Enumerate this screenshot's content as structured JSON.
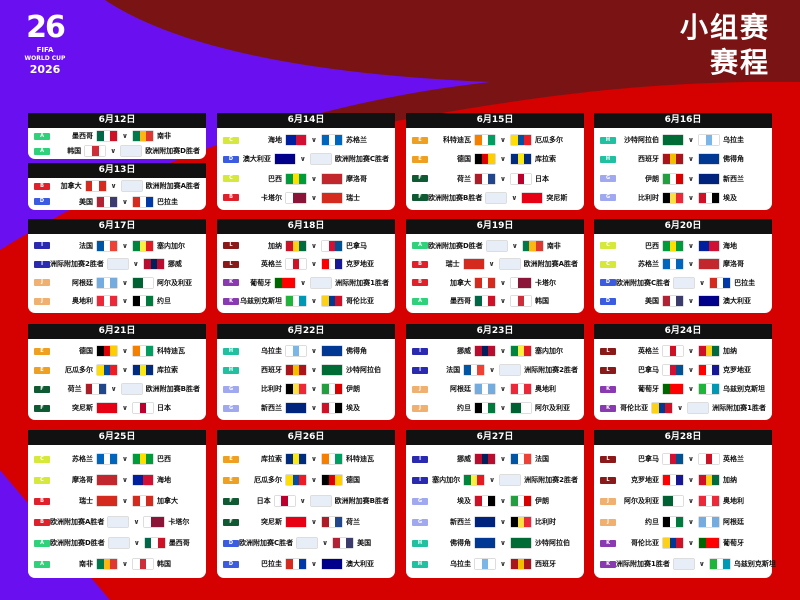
{
  "header": {
    "title_line1": "小组赛",
    "title_line2": "赛程"
  },
  "logo": {
    "number": "26",
    "fifa": "FIFA",
    "world_cup": "WORLD CUP",
    "year": "2026"
  },
  "colors": {
    "purple": "#6a10f0",
    "dark_red": "#7a1414",
    "red": "#d50000",
    "card_header": "#111111"
  },
  "group_colors": {
    "A": "#2fd27a",
    "B": "#e0202a",
    "C": "#d6e83a",
    "D": "#3b5be0",
    "E": "#f0a020",
    "F": "#0f5a32",
    "G": "#a0a8f0",
    "H": "#20c0a0",
    "I": "#2a2ab0",
    "J": "#f0b070",
    "K": "#8a3ab0",
    "L": "#8a1a1a"
  },
  "flags": {
    "墨西哥": [
      "#006847",
      "#ffffff",
      "#ce1126"
    ],
    "南非": [
      "#007a4d",
      "#ffb612",
      "#de3831"
    ],
    "韩国": [
      "#ffffff",
      "#cd2e3a",
      "#ffffff"
    ],
    "加拿大": [
      "#d52b1e",
      "#ffffff",
      "#d52b1e"
    ],
    "美国": [
      "#b22234",
      "#ffffff",
      "#3c3b6e"
    ],
    "巴拉圭": [
      "#d52b1e",
      "#ffffff",
      "#0038a8"
    ],
    "海地": [
      "#00209f",
      "#d21034"
    ],
    "苏格兰": [
      "#0065bd",
      "#ffffff",
      "#0065bd"
    ],
    "澳大利亚": [
      "#00008b",
      "#00008b"
    ],
    "巴西": [
      "#009c3b",
      "#ffdf00",
      "#009c3b"
    ],
    "摩洛哥": [
      "#c1272d",
      "#c1272d"
    ],
    "卡塔尔": [
      "#ffffff",
      "#8a1538",
      "#8a1538"
    ],
    "瑞士": [
      "#d52b1e",
      "#d52b1e"
    ],
    "科特迪瓦": [
      "#f77f00",
      "#ffffff",
      "#009e60"
    ],
    "厄瓜多尔": [
      "#ffdd00",
      "#034ea2",
      "#ed1c24"
    ],
    "德国": [
      "#000000",
      "#dd0000",
      "#ffce00"
    ],
    "库拉索": [
      "#002b7f",
      "#f9e814",
      "#002b7f"
    ],
    "荷兰": [
      "#ae1c28",
      "#ffffff",
      "#21468b"
    ],
    "日本": [
      "#ffffff",
      "#bc002d",
      "#ffffff"
    ],
    "突尼斯": [
      "#e70013",
      "#e70013"
    ],
    "沙特阿拉伯": [
      "#006c35",
      "#006c35"
    ],
    "乌拉圭": [
      "#ffffff",
      "#7bb6e6",
      "#ffffff"
    ],
    "西班牙": [
      "#aa151b",
      "#f1bf00",
      "#aa151b"
    ],
    "佛得角": [
      "#003893",
      "#003893"
    ],
    "伊朗": [
      "#239f40",
      "#ffffff",
      "#da0000"
    ],
    "新西兰": [
      "#00247d",
      "#00247d"
    ],
    "比利时": [
      "#000000",
      "#fae042",
      "#ed2939"
    ],
    "埃及": [
      "#ce1126",
      "#ffffff",
      "#000000"
    ],
    "法国": [
      "#0055a4",
      "#ffffff",
      "#ef4135"
    ],
    "塞内加尔": [
      "#00853f",
      "#fdef42",
      "#e31b23"
    ],
    "挪威": [
      "#ba0c2f",
      "#00205b",
      "#ba0c2f"
    ],
    "阿根廷": [
      "#74acdf",
      "#ffffff",
      "#74acdf"
    ],
    "阿尔及利亚": [
      "#006233",
      "#ffffff"
    ],
    "奥地利": [
      "#ed2939",
      "#ffffff",
      "#ed2939"
    ],
    "约旦": [
      "#000000",
      "#ffffff",
      "#007a3d"
    ],
    "加纳": [
      "#ce1126",
      "#fcd116",
      "#006b3f"
    ],
    "巴拿马": [
      "#ffffff",
      "#d21034",
      "#005293"
    ],
    "英格兰": [
      "#ffffff",
      "#ce1124",
      "#ffffff"
    ],
    "克罗地亚": [
      "#ff0000",
      "#ffffff",
      "#171796"
    ],
    "葡萄牙": [
      "#006600",
      "#ff0000",
      "#ff0000"
    ],
    "乌兹别克斯坦": [
      "#1eb53a",
      "#ffffff",
      "#0099b5"
    ],
    "哥伦比亚": [
      "#fcd116",
      "#003893",
      "#ce1126"
    ],
    "_playoff": [
      "#e8eef8",
      "#e8eef8"
    ]
  },
  "days": [
    {
      "date": "6月12日",
      "matches": [
        [
          "A",
          "墨西哥",
          "南非"
        ],
        [
          "A",
          "韩国",
          "欧洲附加赛D胜者"
        ]
      ]
    },
    {
      "date": "6月13日",
      "matches": [
        [
          "B",
          "加拿大",
          "欧洲附加赛A胜者"
        ],
        [
          "D",
          "美国",
          "巴拉圭"
        ]
      ]
    },
    {
      "date": "6月14日",
      "matches": [
        [
          "C",
          "海地",
          "苏格兰"
        ],
        [
          "D",
          "澳大利亚",
          "欧洲附加赛C胜者"
        ],
        [
          "C",
          "巴西",
          "摩洛哥"
        ],
        [
          "B",
          "卡塔尔",
          "瑞士"
        ]
      ]
    },
    {
      "date": "6月15日",
      "matches": [
        [
          "E",
          "科特迪瓦",
          "厄瓜多尔"
        ],
        [
          "E",
          "德国",
          "库拉索"
        ],
        [
          "F",
          "荷兰",
          "日本"
        ],
        [
          "F",
          "欧洲附加赛B胜者",
          "突尼斯"
        ]
      ]
    },
    {
      "date": "6月16日",
      "matches": [
        [
          "H",
          "沙特阿拉伯",
          "乌拉圭"
        ],
        [
          "H",
          "西班牙",
          "佛得角"
        ],
        [
          "G",
          "伊朗",
          "新西兰"
        ],
        [
          "G",
          "比利时",
          "埃及"
        ]
      ]
    },
    {
      "date": "6月17日",
      "matches": [
        [
          "I",
          "法国",
          "塞内加尔"
        ],
        [
          "I",
          "洲际附加赛2胜者",
          "挪威"
        ],
        [
          "J",
          "阿根廷",
          "阿尔及利亚"
        ],
        [
          "J",
          "奥地利",
          "约旦"
        ]
      ]
    },
    {
      "date": "6月18日",
      "matches": [
        [
          "L",
          "加纳",
          "巴拿马"
        ],
        [
          "L",
          "英格兰",
          "克罗地亚"
        ],
        [
          "K",
          "葡萄牙",
          "洲际附加赛1胜者"
        ],
        [
          "K",
          "乌兹别克斯坦",
          "哥伦比亚"
        ]
      ]
    },
    {
      "date": "6月19日",
      "matches": [
        [
          "A",
          "欧洲附加赛D胜者",
          "南非"
        ],
        [
          "B",
          "瑞士",
          "欧洲附加赛A胜者"
        ],
        [
          "B",
          "加拿大",
          "卡塔尔"
        ],
        [
          "A",
          "墨西哥",
          "韩国"
        ]
      ]
    },
    {
      "date": "6月20日",
      "matches": [
        [
          "C",
          "巴西",
          "海地"
        ],
        [
          "C",
          "苏格兰",
          "摩洛哥"
        ],
        [
          "D",
          "欧洲附加赛C胜者",
          "巴拉圭"
        ],
        [
          "D",
          "美国",
          "澳大利亚"
        ]
      ]
    },
    {
      "date": "6月21日",
      "matches": [
        [
          "E",
          "德国",
          "科特迪瓦"
        ],
        [
          "E",
          "厄瓜多尔",
          "库拉索"
        ],
        [
          "F",
          "荷兰",
          "欧洲附加赛B胜者"
        ],
        [
          "F",
          "突尼斯",
          "日本"
        ]
      ]
    },
    {
      "date": "6月22日",
      "matches": [
        [
          "H",
          "乌拉圭",
          "佛得角"
        ],
        [
          "H",
          "西班牙",
          "沙特阿拉伯"
        ],
        [
          "G",
          "比利时",
          "伊朗"
        ],
        [
          "G",
          "新西兰",
          "埃及"
        ]
      ]
    },
    {
      "date": "6月23日",
      "matches": [
        [
          "I",
          "挪威",
          "塞内加尔"
        ],
        [
          "I",
          "法国",
          "洲际附加赛2胜者"
        ],
        [
          "J",
          "阿根廷",
          "奥地利"
        ],
        [
          "J",
          "约旦",
          "阿尔及利亚"
        ]
      ]
    },
    {
      "date": "6月24日",
      "matches": [
        [
          "L",
          "英格兰",
          "加纳"
        ],
        [
          "L",
          "巴拿马",
          "克罗地亚"
        ],
        [
          "K",
          "葡萄牙",
          "乌兹别克斯坦"
        ],
        [
          "K",
          "哥伦比亚",
          "洲际附加赛1胜者"
        ]
      ]
    },
    {
      "date": "6月25日",
      "matches": [
        [
          "C",
          "苏格兰",
          "巴西"
        ],
        [
          "C",
          "摩洛哥",
          "海地"
        ],
        [
          "B",
          "瑞士",
          "加拿大"
        ],
        [
          "B",
          "欧洲附加赛A胜者",
          "卡塔尔"
        ],
        [
          "A",
          "欧洲附加赛D胜者",
          "墨西哥"
        ],
        [
          "A",
          "南非",
          "韩国"
        ]
      ]
    },
    {
      "date": "6月26日",
      "matches": [
        [
          "E",
          "库拉索",
          "科特迪瓦"
        ],
        [
          "E",
          "厄瓜多尔",
          "德国"
        ],
        [
          "F",
          "日本",
          "欧洲附加赛B胜者"
        ],
        [
          "F",
          "突尼斯",
          "荷兰"
        ],
        [
          "D",
          "欧洲附加赛C胜者",
          "美国"
        ],
        [
          "D",
          "巴拉圭",
          "澳大利亚"
        ]
      ]
    },
    {
      "date": "6月27日",
      "matches": [
        [
          "I",
          "挪威",
          "法国"
        ],
        [
          "I",
          "塞内加尔",
          "洲际附加赛2胜者"
        ],
        [
          "G",
          "埃及",
          "伊朗"
        ],
        [
          "G",
          "新西兰",
          "比利时"
        ],
        [
          "H",
          "佛得角",
          "沙特阿拉伯"
        ],
        [
          "H",
          "乌拉圭",
          "西班牙"
        ]
      ]
    },
    {
      "date": "6月28日",
      "matches": [
        [
          "L",
          "巴拿马",
          "英格兰"
        ],
        [
          "L",
          "克罗地亚",
          "加纳"
        ],
        [
          "J",
          "阿尔及利亚",
          "奥地利"
        ],
        [
          "J",
          "约旦",
          "阿根廷"
        ],
        [
          "K",
          "哥伦比亚",
          "葡萄牙"
        ],
        [
          "K",
          "洲际附加赛1胜者",
          "乌兹别克斯坦"
        ]
      ]
    }
  ]
}
